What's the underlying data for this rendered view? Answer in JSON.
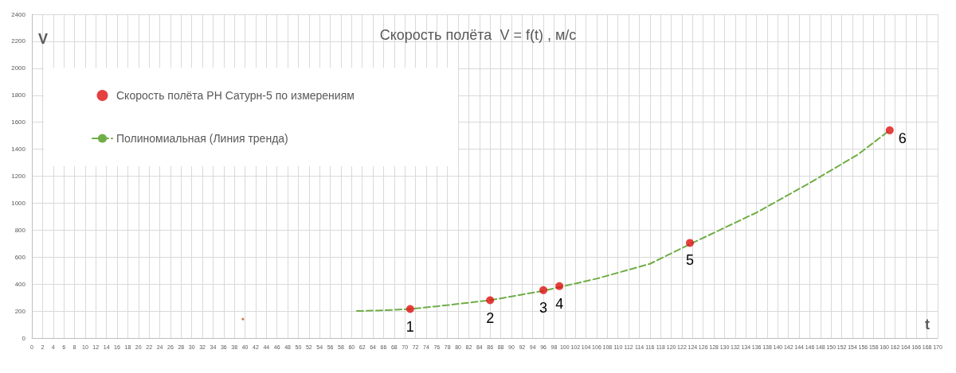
{
  "chart_data": {
    "type": "scatter",
    "title": "Скорость полёта  V = f(t) , м/с",
    "xlabel": "t",
    "ylabel": "V",
    "series": [
      {
        "name": "Скорость полёта РН Сатурн-5 по измерениям",
        "color": "#e00f0f",
        "marker": "circle",
        "x": [
          71,
          86,
          96,
          99,
          123.5,
          161
        ],
        "values": [
          215,
          280,
          355,
          385,
          705,
          1540
        ]
      },
      {
        "type": "line",
        "name": "Полиномиальная (Линия тренда)",
        "color": "#70ad47",
        "line_style": "dashed",
        "marker": "none",
        "x": [
          61,
          66,
          71,
          76,
          86,
          96,
          106,
          116,
          124,
          136,
          146,
          155,
          161
        ],
        "values": [
          200,
          205,
          215,
          235,
          280,
          350,
          440,
          550,
          705,
          930,
          1150,
          1360,
          1540
        ]
      },
      {
        "color": "#c55a11",
        "marker": "diamond",
        "x": [
          39.6
        ],
        "values": [
          140
        ]
      }
    ],
    "annotations": [
      {
        "text": "1",
        "x": 71,
        "y": 215
      },
      {
        "text": "2",
        "x": 86,
        "y": 280
      },
      {
        "text": "3",
        "x": 96,
        "y": 355
      },
      {
        "text": "4",
        "x": 99,
        "y": 385
      },
      {
        "text": "5",
        "x": 123.5,
        "y": 705
      },
      {
        "text": "6",
        "x": 161,
        "y": 1540
      }
    ],
    "xlim": [
      0,
      170
    ],
    "xticks": [
      0,
      2,
      4,
      6,
      8,
      10,
      12,
      14,
      16,
      18,
      20,
      22,
      24,
      26,
      28,
      30,
      32,
      34,
      36,
      38,
      40,
      42,
      44,
      46,
      48,
      50,
      52,
      54,
      56,
      58,
      60,
      62,
      64,
      66,
      68,
      70,
      72,
      74,
      76,
      78,
      80,
      82,
      84,
      86,
      88,
      90,
      92,
      94,
      96,
      98,
      100,
      102,
      104,
      106,
      108,
      110,
      112,
      114,
      116,
      118,
      120,
      122,
      124,
      126,
      128,
      130,
      132,
      134,
      136,
      138,
      140,
      142,
      144,
      146,
      148,
      150,
      152,
      154,
      156,
      158,
      160,
      162,
      164,
      166,
      168,
      170
    ],
    "ylim": [
      0,
      2400
    ],
    "yticks": [
      0,
      200,
      400,
      600,
      800,
      1000,
      1200,
      1400,
      1600,
      1800,
      2000,
      2200,
      2400
    ],
    "grid": true,
    "legend": "top left"
  }
}
